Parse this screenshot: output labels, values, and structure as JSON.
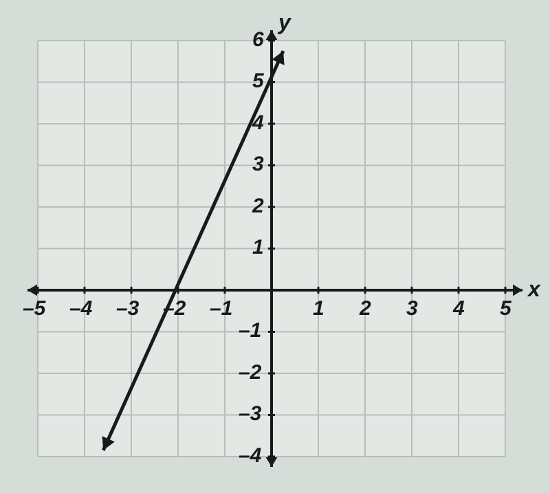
{
  "chart": {
    "type": "line",
    "background_color": "#dce2df",
    "page_background": "#d5ddd9",
    "grid_background": "#e4e8e5",
    "grid_color": "#b8beb9",
    "grid_line_width": 2,
    "axis_color": "#1a1a1a",
    "axis_line_width": 4,
    "line_color": "#1a1a1a",
    "line_width": 5,
    "xlim": [
      -5,
      5
    ],
    "ylim": [
      -4,
      6
    ],
    "xtick_step": 1,
    "ytick_step": 1,
    "x_label": "x",
    "y_label": "y",
    "axis_label_fontsize": 32,
    "tick_fontsize": 30,
    "x_ticks": [
      -5,
      -4,
      -3,
      -2,
      -1,
      1,
      2,
      3,
      4,
      5
    ],
    "y_ticks": [
      -4,
      -3,
      -2,
      -1,
      1,
      2,
      3,
      4,
      5,
      6
    ],
    "line_points": [
      {
        "x": 0.25,
        "y": 5.75
      },
      {
        "x": -3.6,
        "y": -3.85
      }
    ],
    "arrowheads": true,
    "arrow_size": 14,
    "tick_mark_length": 10
  }
}
